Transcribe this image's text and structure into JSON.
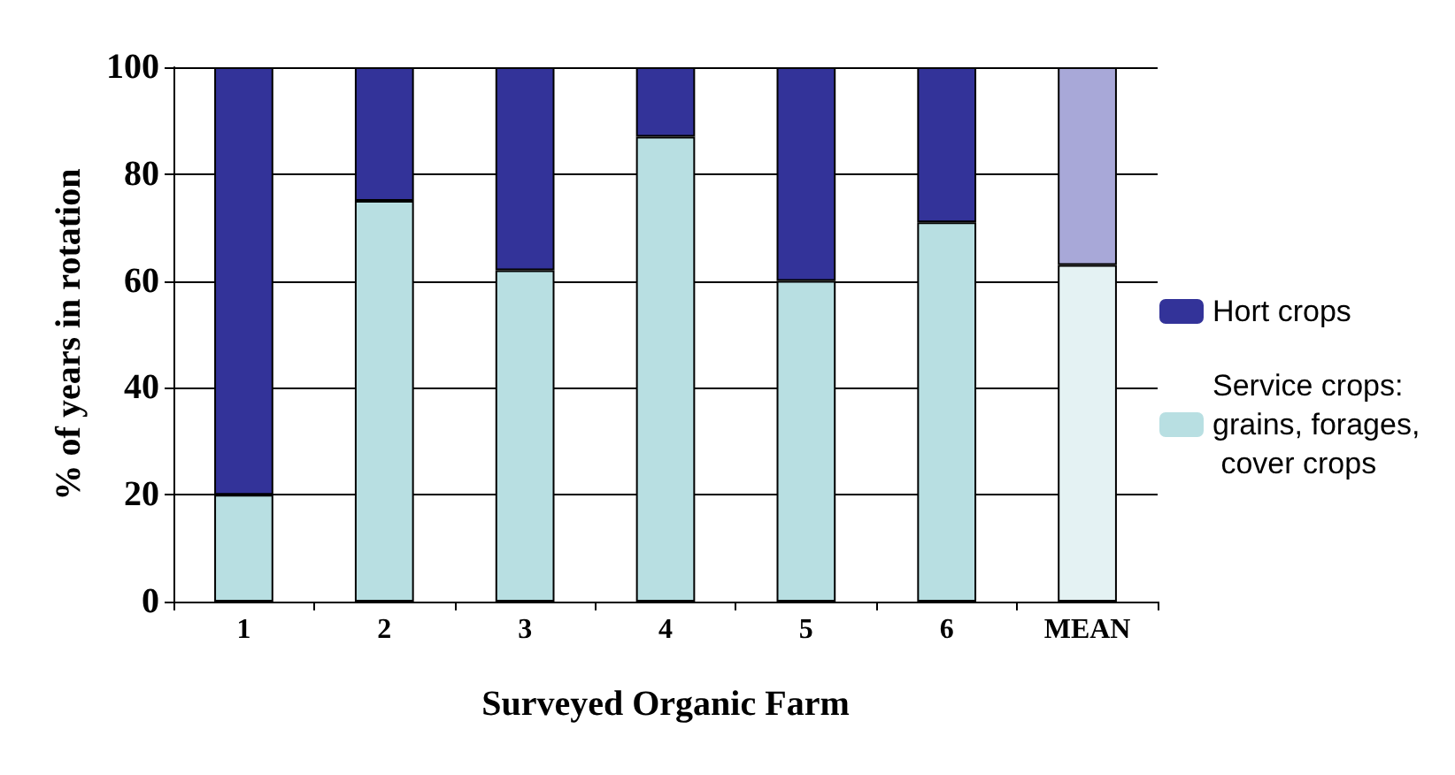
{
  "chart_data": {
    "type": "bar",
    "stacked": true,
    "xlabel": "Surveyed Organic Farm",
    "ylabel": "% of years in rotation",
    "categories": [
      "1",
      "2",
      "3",
      "4",
      "5",
      "6",
      "MEAN"
    ],
    "series": [
      {
        "name": "Service crops: grains, forages, cover crops",
        "color": "#b8dfe2",
        "colors": [
          "#b8dfe2",
          "#b8dfe2",
          "#b8dfe2",
          "#b8dfe2",
          "#b8dfe2",
          "#b8dfe2",
          "#e4f2f3"
        ],
        "values": [
          20,
          75,
          62,
          87,
          60,
          71,
          63
        ]
      },
      {
        "name": "Hort crops",
        "color": "#333399",
        "colors": [
          "#333399",
          "#333399",
          "#333399",
          "#333399",
          "#333399",
          "#333399",
          "#a8a8d8"
        ],
        "values": [
          80,
          25,
          38,
          13,
          40,
          29,
          37
        ]
      }
    ],
    "ylim": [
      0,
      100
    ],
    "yticks": [
      0,
      20,
      40,
      60,
      80,
      100
    ],
    "grid": "y",
    "legend": "right"
  }
}
